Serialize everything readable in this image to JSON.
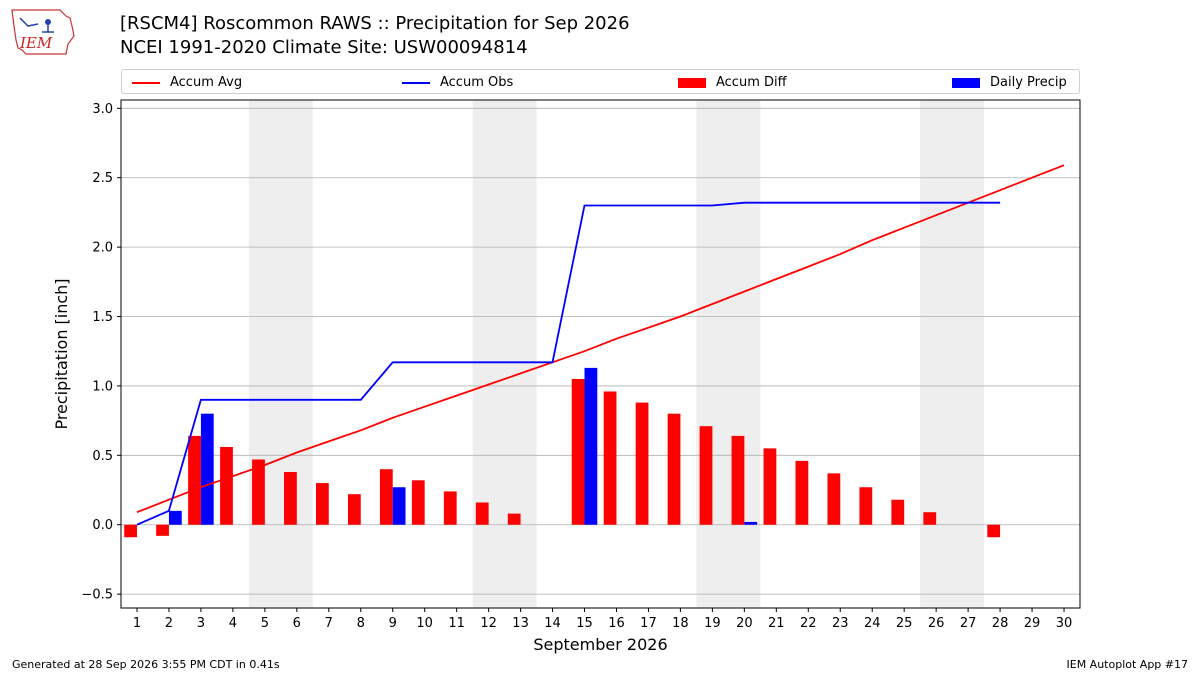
{
  "header": {
    "title_line1": "[RSCM4] Roscommon RAWS :: Precipitation for Sep 2026",
    "title_line2": "NCEI 1991-2020 Climate Site: USW00094814",
    "logo_text": "IEM"
  },
  "legend": {
    "accum_avg": "Accum Avg",
    "accum_obs": "Accum Obs",
    "accum_diff": "Accum Diff",
    "daily_precip": "Daily Precip"
  },
  "footer": {
    "generated": "Generated at 28 Sep 2026 3:55 PM CDT in 0.41s",
    "app": "IEM Autoplot App #17"
  },
  "colors": {
    "avg": "#ff0000",
    "obs": "#0000ff",
    "diff": "#ff0000",
    "daily": "#0000ff",
    "weekend_shade": "#eeeeee",
    "grid": "#b0b0b0"
  },
  "chart_data": {
    "type": "bar",
    "xlabel": "September 2026",
    "ylabel": "Precipitation [inch]",
    "xlim": [
      0.5,
      30.5
    ],
    "ylim": [
      -0.6,
      3.06
    ],
    "yticks": [
      -0.5,
      0.0,
      0.5,
      1.0,
      1.5,
      2.0,
      2.5,
      3.0
    ],
    "ytick_labels": [
      "−0.5",
      "0.0",
      "0.5",
      "1.0",
      "1.5",
      "2.0",
      "2.5",
      "3.0"
    ],
    "xticks": [
      1,
      2,
      3,
      4,
      5,
      6,
      7,
      8,
      9,
      10,
      11,
      12,
      13,
      14,
      15,
      16,
      17,
      18,
      19,
      20,
      21,
      22,
      23,
      24,
      25,
      26,
      27,
      28,
      29,
      30
    ],
    "grid": "horizontal",
    "legend_position": "top",
    "shaded_days": [
      [
        5,
        6
      ],
      [
        12,
        13
      ],
      [
        19,
        20
      ],
      [
        26,
        27
      ]
    ],
    "series": [
      {
        "name": "Accum Avg",
        "kind": "line",
        "x": [
          1,
          2,
          3,
          4,
          5,
          6,
          7,
          8,
          9,
          10,
          11,
          12,
          13,
          14,
          15,
          16,
          17,
          18,
          19,
          20,
          21,
          22,
          23,
          24,
          25,
          26,
          27,
          28,
          29,
          30
        ],
        "values": [
          0.09,
          0.18,
          0.27,
          0.35,
          0.43,
          0.52,
          0.6,
          0.68,
          0.77,
          0.85,
          0.93,
          1.01,
          1.09,
          1.17,
          1.25,
          1.34,
          1.42,
          1.5,
          1.59,
          1.68,
          1.77,
          1.86,
          1.95,
          2.05,
          2.14,
          2.23,
          2.32,
          2.41,
          2.5,
          2.59
        ]
      },
      {
        "name": "Accum Obs",
        "kind": "line",
        "x": [
          1,
          2,
          3,
          4,
          5,
          6,
          7,
          8,
          9,
          10,
          11,
          12,
          13,
          14,
          15,
          16,
          17,
          18,
          19,
          20,
          21,
          22,
          23,
          24,
          25,
          26,
          27,
          28
        ],
        "values": [
          0.0,
          0.1,
          0.9,
          0.9,
          0.9,
          0.9,
          0.9,
          0.9,
          1.17,
          1.17,
          1.17,
          1.17,
          1.17,
          1.17,
          2.3,
          2.3,
          2.3,
          2.3,
          2.3,
          2.32,
          2.32,
          2.32,
          2.32,
          2.32,
          2.32,
          2.32,
          2.32,
          2.32
        ]
      },
      {
        "name": "Accum Diff",
        "kind": "bar",
        "x": [
          1,
          2,
          3,
          4,
          5,
          6,
          7,
          8,
          9,
          10,
          11,
          12,
          13,
          14,
          15,
          16,
          17,
          18,
          19,
          20,
          21,
          22,
          23,
          24,
          25,
          26,
          27,
          28
        ],
        "values": [
          -0.09,
          -0.08,
          0.64,
          0.56,
          0.47,
          0.38,
          0.3,
          0.22,
          0.4,
          0.32,
          0.24,
          0.16,
          0.08,
          0.0,
          1.05,
          0.96,
          0.88,
          0.8,
          0.71,
          0.64,
          0.55,
          0.46,
          0.37,
          0.27,
          0.18,
          0.09,
          0.0,
          -0.09
        ]
      },
      {
        "name": "Daily Precip",
        "kind": "bar",
        "x": [
          2,
          3,
          9,
          15,
          20
        ],
        "values": [
          0.1,
          0.8,
          0.27,
          1.13,
          0.02
        ]
      }
    ]
  }
}
